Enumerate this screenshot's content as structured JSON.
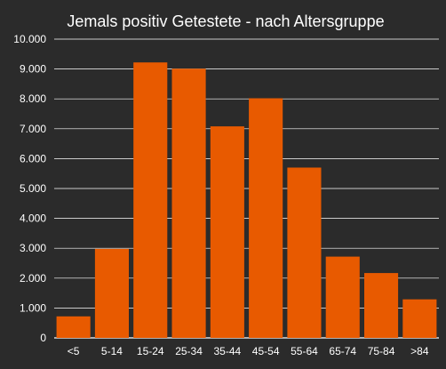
{
  "colors": {
    "background": "#2b2b2b",
    "bar": "#e85a00",
    "grid": "#ffffff",
    "text": "#ffffff"
  },
  "chart_data": {
    "type": "bar",
    "title": "Jemals positiv Getestete - nach Altersgruppe",
    "xlabel": "",
    "ylabel": "",
    "categories": [
      "<5",
      "5-14",
      "15-24",
      "25-34",
      "35-44",
      "45-54",
      "55-64",
      "65-74",
      "75-84",
      ">84"
    ],
    "values": [
      720,
      2980,
      9220,
      9010,
      7080,
      8020,
      5700,
      2720,
      2170,
      1290
    ],
    "ylim": [
      0,
      10000
    ],
    "y_ticks": [
      0,
      1000,
      2000,
      3000,
      4000,
      5000,
      6000,
      7000,
      8000,
      9000,
      10000
    ],
    "y_tick_labels": [
      "0",
      "1.000",
      "2.000",
      "3.000",
      "4.000",
      "5.000",
      "6.000",
      "7.000",
      "8.000",
      "9.000",
      "10.000"
    ],
    "grid": true,
    "legend": "none"
  }
}
